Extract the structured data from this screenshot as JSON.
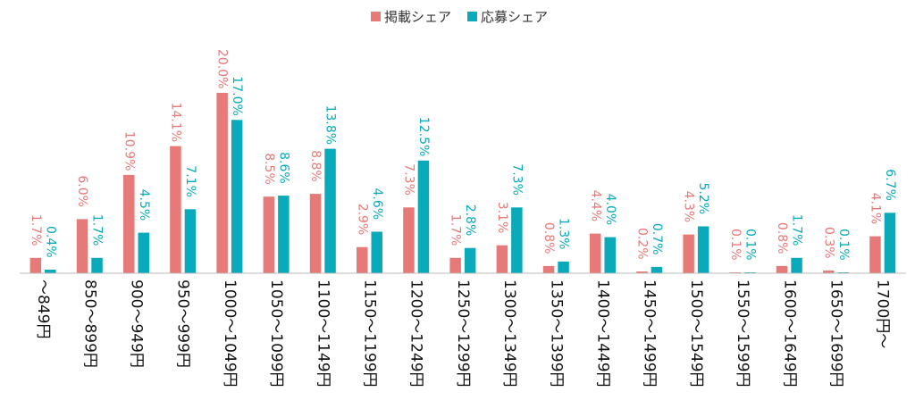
{
  "chart_data": {
    "type": "bar",
    "categories": [
      "～849円",
      "850～899円",
      "900～949円",
      "950～999円",
      "1000～1049円",
      "1050～1099円",
      "1100～1149円",
      "1150～1199円",
      "1200～1249円",
      "1250～1299円",
      "1300～1349円",
      "1350～1399円",
      "1400～1449円",
      "1450～1499円",
      "1500～1549円",
      "1550～1599円",
      "1600～1649円",
      "1650～1699円",
      "1700円～"
    ],
    "series": [
      {
        "name": "掲載シェア",
        "color": "#E67A78",
        "values": [
          1.7,
          6.0,
          10.9,
          14.1,
          20.0,
          8.5,
          8.8,
          2.9,
          7.3,
          1.7,
          3.1,
          0.8,
          4.4,
          0.2,
          4.3,
          0.1,
          0.8,
          0.3,
          4.1
        ],
        "labels": [
          "1.7%",
          "6.0%",
          "10.9%",
          "14.1%",
          "20.0%",
          "8.5%",
          "8.8%",
          "2.9%",
          "7.3%",
          "1.7%",
          "3.1%",
          "0.8%",
          "4.4%",
          "0.2%",
          "4.3%",
          "0.1%",
          "0.8%",
          "0.3%",
          "4.1%"
        ]
      },
      {
        "name": "応募シェア",
        "color": "#0AAABB",
        "values": [
          0.4,
          1.7,
          4.5,
          7.1,
          17.0,
          8.6,
          13.8,
          4.6,
          12.5,
          2.8,
          7.3,
          1.3,
          4.0,
          0.7,
          5.2,
          0.1,
          1.7,
          0.1,
          6.7
        ],
        "labels": [
          "0.4%",
          "1.7%",
          "4.5%",
          "7.1%",
          "17.0%",
          "8.6%",
          "13.8%",
          "4.6%",
          "12.5%",
          "2.8%",
          "7.3%",
          "1.3%",
          "4.0%",
          "0.7%",
          "5.2%",
          "0.1%",
          "1.7%",
          "0.1%",
          "6.7%"
        ]
      }
    ],
    "ylim": [
      0,
      20
    ],
    "legend": "top-center",
    "grid": false,
    "axis_color": "#BBBBBB"
  }
}
